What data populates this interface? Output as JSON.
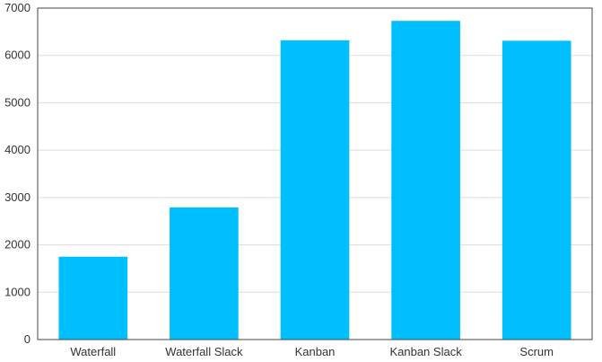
{
  "chart_data": {
    "type": "bar",
    "title": "",
    "xlabel": "",
    "ylabel": "",
    "categories": [
      "Waterfall",
      "Waterfall Slack",
      "Kanban",
      "Kanban Slack",
      "Scrum"
    ],
    "values": [
      1750,
      2790,
      6320,
      6730,
      6310
    ],
    "ylim": [
      0,
      7000
    ],
    "yticks": [
      "0",
      "1000",
      "2000",
      "3000",
      "4000",
      "5000",
      "6000",
      "7000"
    ],
    "grid": true,
    "legend": "none",
    "colors": {
      "bar": "#00bfff",
      "grid": "#dddddd",
      "axis": "#444444",
      "text": "#333333"
    }
  }
}
